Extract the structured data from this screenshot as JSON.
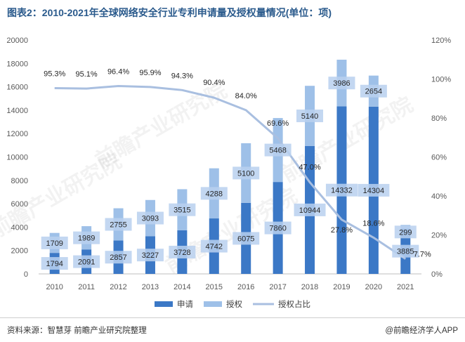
{
  "header": {
    "title": "图表2：2010-2021年全球网络安全行业专利申请量及授权量情况(单位：项)"
  },
  "footer": {
    "source": "资料来源：智慧芽 前瞻产业研究院整理",
    "credit": "@前瞻经济学人APP"
  },
  "watermark": {
    "text": "前瞻产业研究院"
  },
  "colors": {
    "apply": "#3b78c6",
    "grant": "#9ec0e8",
    "rate": "#a9bfe0",
    "label_box": "#b8d0ee",
    "title": "#2a5a8c"
  },
  "chart_data": {
    "type": "bar",
    "stacked": true,
    "categories": [
      "2010",
      "2011",
      "2012",
      "2013",
      "2014",
      "2015",
      "2016",
      "2017",
      "2018",
      "2019",
      "2020",
      "2021"
    ],
    "series": [
      {
        "name": "申请",
        "type": "bar",
        "axis": "left",
        "values": [
          1794,
          2091,
          2857,
          3227,
          3728,
          4742,
          6075,
          7860,
          10944,
          14332,
          14304,
          3885
        ]
      },
      {
        "name": "授权",
        "type": "bar",
        "axis": "left",
        "values": [
          1709,
          1989,
          2755,
          3093,
          3515,
          4288,
          5100,
          5468,
          5140,
          3986,
          2654,
          299
        ]
      },
      {
        "name": "授权占比",
        "type": "line",
        "axis": "right",
        "values": [
          95.3,
          95.1,
          96.4,
          95.9,
          94.3,
          90.4,
          84.0,
          69.6,
          47.0,
          27.8,
          18.6,
          7.7
        ],
        "labels": [
          "95.3%",
          "95.1%",
          "96.4%",
          "95.9%",
          "94.3%",
          "90.4%",
          "84.0%",
          "69.6%",
          "47.0%",
          "27.8%",
          "18.6%",
          "7.7%"
        ]
      }
    ],
    "y_left": {
      "min": 0,
      "max": 20000,
      "ticks": [
        "0",
        "2000",
        "4000",
        "6000",
        "8000",
        "10000",
        "12000",
        "14000",
        "16000",
        "18000",
        "20000"
      ]
    },
    "y_right": {
      "min": 0,
      "max": 120,
      "ticks": [
        "0%",
        "20%",
        "40%",
        "60%",
        "80%",
        "100%",
        "120%"
      ]
    },
    "grid": false,
    "legend_position": "bottom"
  }
}
